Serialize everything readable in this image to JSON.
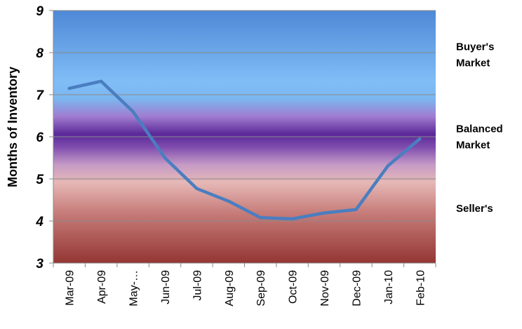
{
  "chart_data": {
    "type": "line",
    "title": "",
    "xlabel": "",
    "ylabel": "Months of Inventory",
    "ylim": [
      3,
      9
    ],
    "yticks": [
      3,
      4,
      5,
      6,
      7,
      8,
      9
    ],
    "categories": [
      "Mar-09",
      "Apr-09",
      "May-…",
      "Jun-09",
      "Jul-09",
      "Aug-09",
      "Sep-09",
      "Oct-09",
      "Nov-09",
      "Dec-09",
      "Jan-10",
      "Feb-10"
    ],
    "series": [
      {
        "values": [
          7.15,
          7.32,
          6.6,
          5.5,
          4.77,
          4.47,
          4.08,
          4.05,
          4.19,
          4.27,
          5.31,
          5.95
        ]
      }
    ],
    "line_color": "#4a7ec0",
    "grid": true,
    "zones": [
      {
        "label_lines": [
          "Buyer's",
          "Market"
        ],
        "center_y": 7.95
      },
      {
        "label_lines": [
          "Balanced",
          "Market"
        ],
        "center_y": 6.0
      },
      {
        "label_lines": [
          "Seller's"
        ],
        "center_y": 4.3
      }
    ]
  }
}
